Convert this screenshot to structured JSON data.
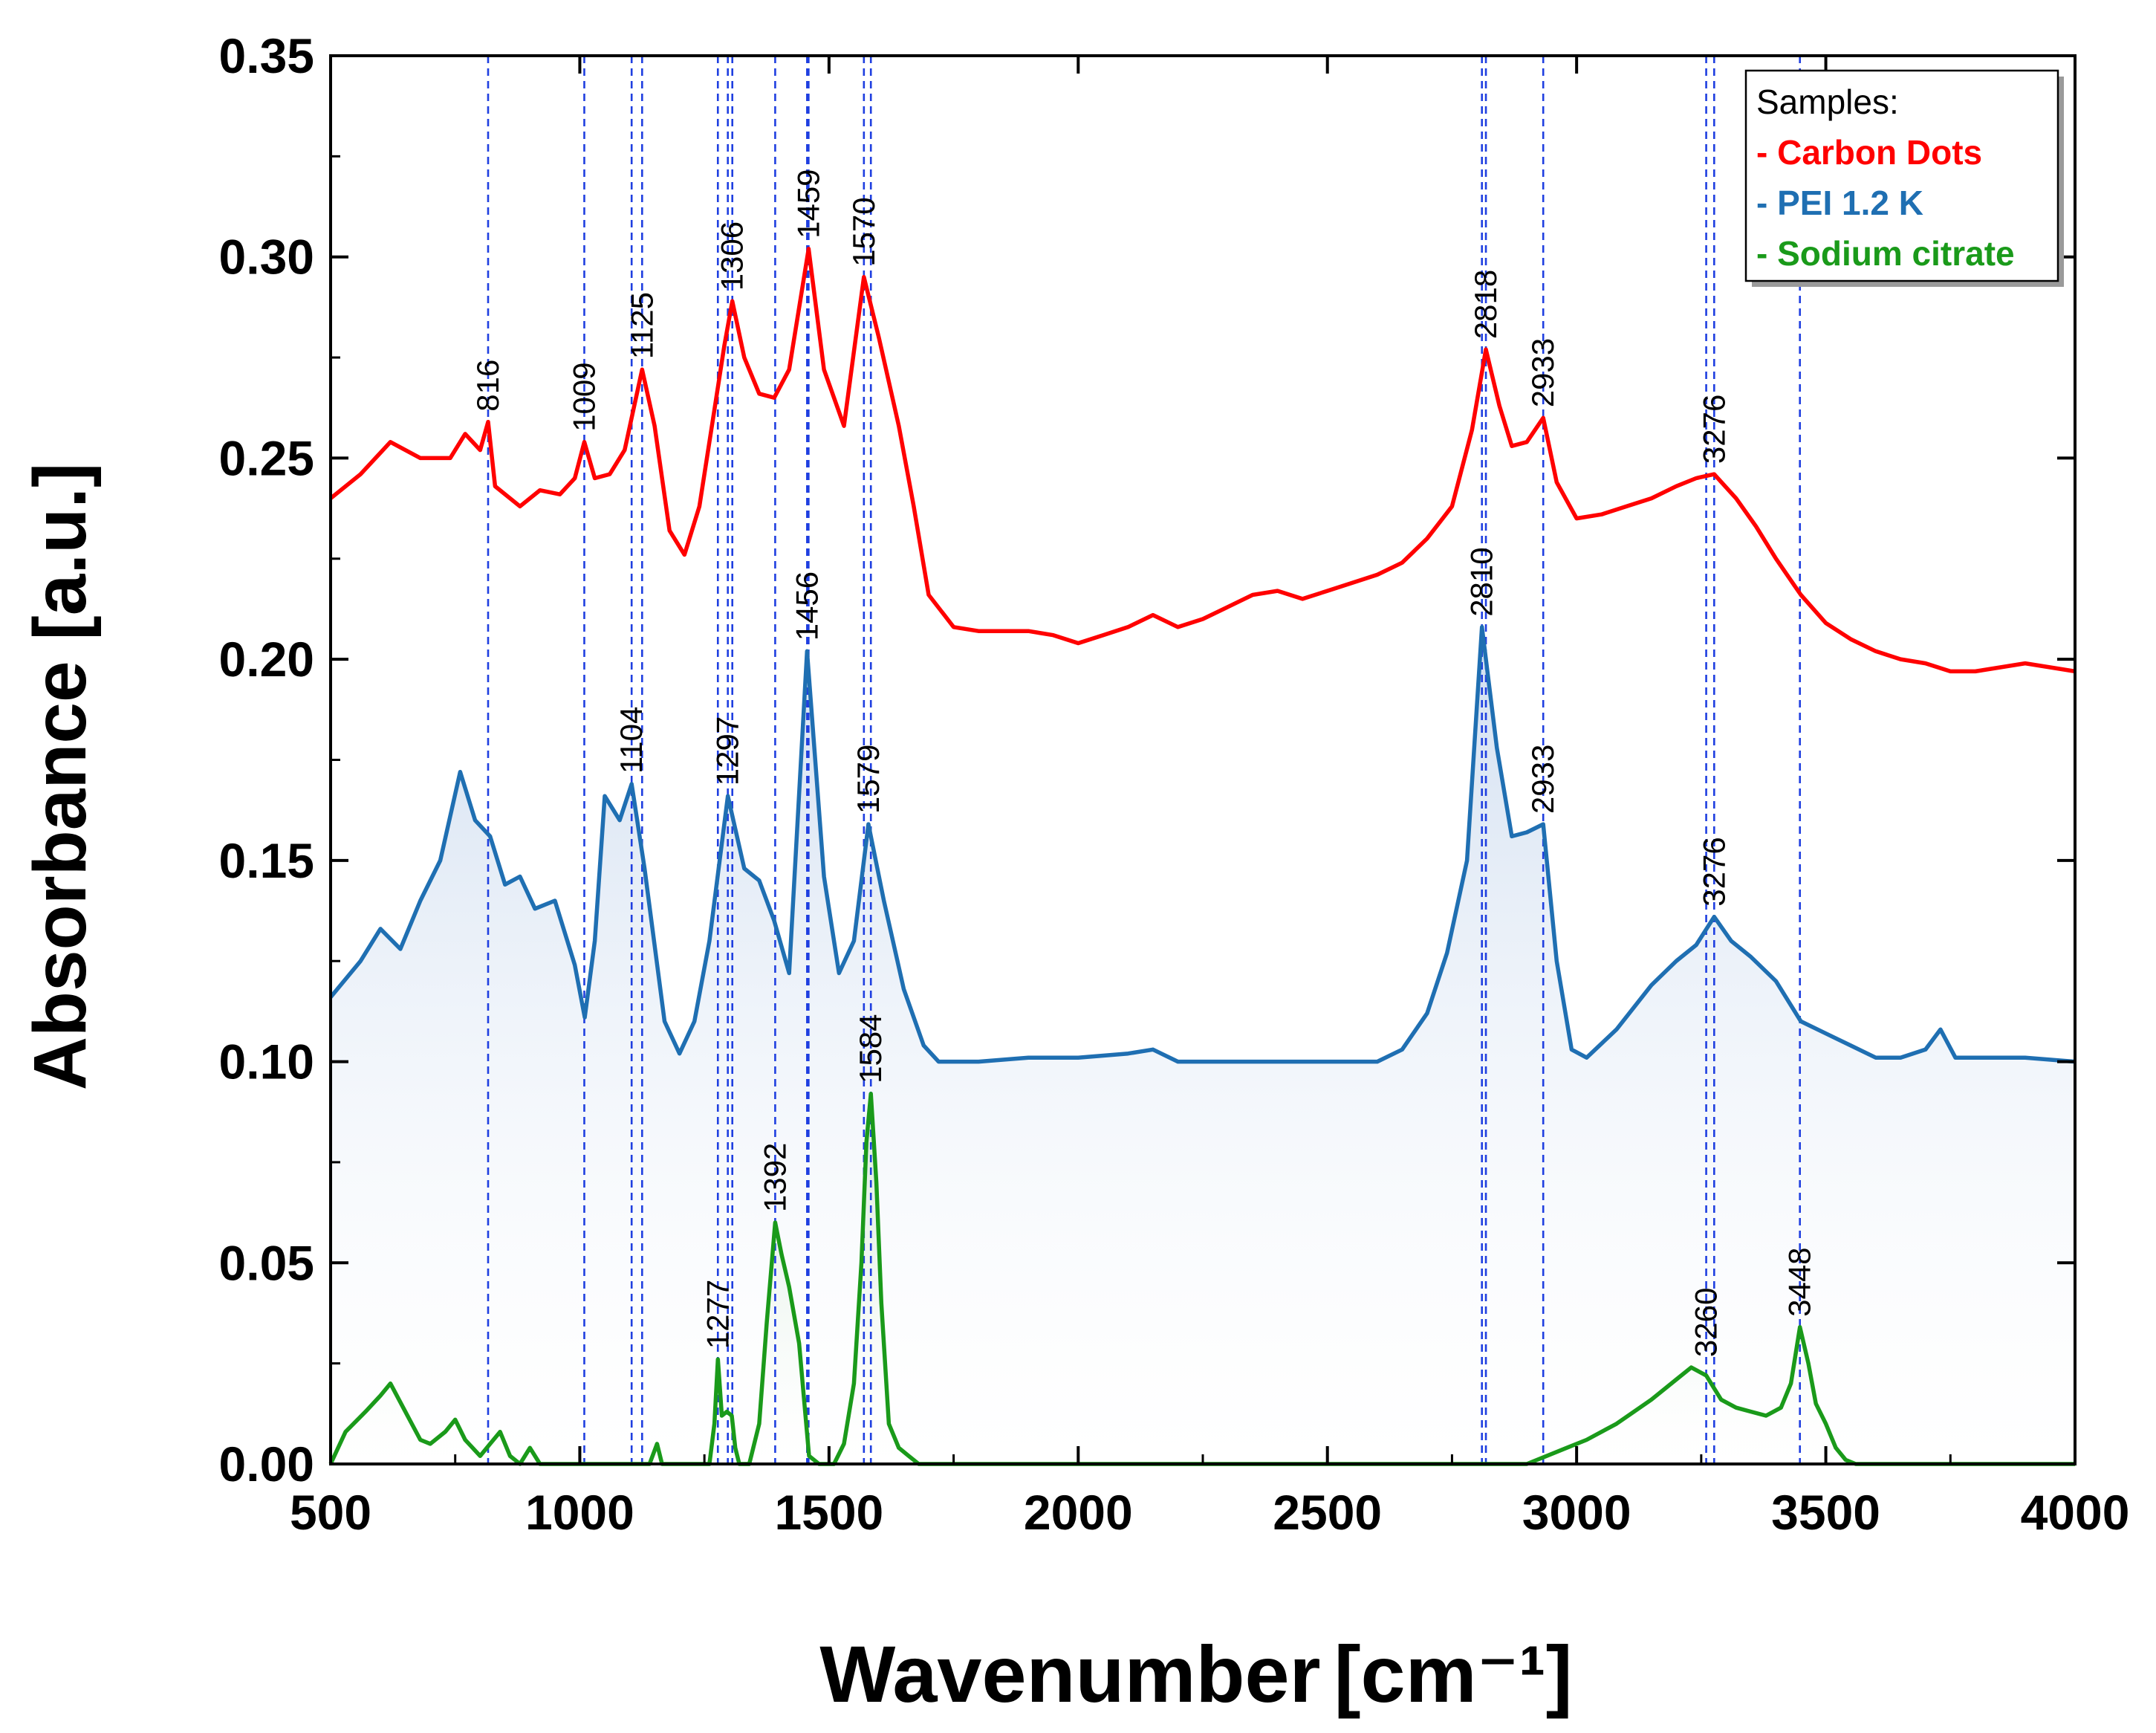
{
  "chart_data": {
    "type": "line",
    "title": "",
    "xlabel": "Wavenumber",
    "xlabel_unit": "[cm⁻¹]",
    "ylabel": "Absorbance [a.u.]",
    "xlim": [
      500,
      4000
    ],
    "ylim": [
      0,
      0.35
    ],
    "x_ticks": [
      500,
      1000,
      1500,
      2000,
      2500,
      3000,
      3500,
      4000
    ],
    "x_tick_labels": [
      "500",
      "1000",
      "1500",
      "2000",
      "2500",
      "3000",
      "3500",
      "4000"
    ],
    "y_ticks": [
      0,
      0.05,
      0.1,
      0.15,
      0.2,
      0.25,
      0.3,
      0.35
    ],
    "y_tick_labels": [
      "0.00",
      "0.05",
      "0.10",
      "0.15",
      "0.20",
      "0.25",
      "0.30",
      "0.35"
    ],
    "grid": false,
    "legend": {
      "title": "Samples:",
      "position": "top-right",
      "entries": [
        {
          "label": "- Carbon Dots",
          "color": "#ff0000"
        },
        {
          "label": "- PEI 1.2 K",
          "color": "#1f6fb2"
        },
        {
          "label": "- Sodium citrate",
          "color": "#1a9a1a"
        }
      ]
    },
    "reference_lines": [
      816,
      1009,
      1104,
      1125,
      1277,
      1297,
      1306,
      1392,
      1456,
      1459,
      1570,
      1584,
      2810,
      2818,
      2933,
      3260,
      3276,
      3448
    ],
    "reference_line_color": "#1f3fe0",
    "series": [
      {
        "name": "Carbon Dots",
        "color": "#ff0000",
        "x": [
          500,
          560,
          620,
          680,
          740,
          770,
          800,
          816,
          830,
          880,
          920,
          960,
          990,
          1009,
          1030,
          1060,
          1090,
          1125,
          1150,
          1180,
          1210,
          1240,
          1270,
          1290,
          1306,
          1330,
          1360,
          1390,
          1420,
          1459,
          1490,
          1530,
          1570,
          1600,
          1640,
          1670,
          1700,
          1750,
          1800,
          1850,
          1900,
          1950,
          2000,
          2050,
          2100,
          2150,
          2200,
          2250,
          2300,
          2350,
          2400,
          2450,
          2500,
          2550,
          2600,
          2650,
          2700,
          2750,
          2790,
          2818,
          2845,
          2870,
          2900,
          2933,
          2960,
          3000,
          3050,
          3100,
          3150,
          3200,
          3240,
          3276,
          3320,
          3360,
          3400,
          3450,
          3500,
          3550,
          3600,
          3650,
          3700,
          3750,
          3800,
          3850,
          3900,
          3950,
          4000
        ],
        "y": [
          0.24,
          0.246,
          0.254,
          0.25,
          0.25,
          0.256,
          0.252,
          0.259,
          0.243,
          0.238,
          0.242,
          0.241,
          0.245,
          0.254,
          0.245,
          0.246,
          0.252,
          0.272,
          0.258,
          0.232,
          0.226,
          0.238,
          0.262,
          0.278,
          0.289,
          0.275,
          0.266,
          0.265,
          0.272,
          0.302,
          0.272,
          0.258,
          0.295,
          0.28,
          0.258,
          0.238,
          0.216,
          0.208,
          0.207,
          0.207,
          0.207,
          0.206,
          0.204,
          0.206,
          0.208,
          0.211,
          0.208,
          0.21,
          0.213,
          0.216,
          0.217,
          0.215,
          0.217,
          0.219,
          0.221,
          0.224,
          0.23,
          0.238,
          0.257,
          0.277,
          0.263,
          0.253,
          0.254,
          0.26,
          0.244,
          0.235,
          0.236,
          0.238,
          0.24,
          0.243,
          0.245,
          0.246,
          0.24,
          0.233,
          0.225,
          0.216,
          0.209,
          0.205,
          0.202,
          0.2,
          0.199,
          0.197,
          0.197,
          0.198,
          0.199,
          0.198,
          0.197
        ]
      },
      {
        "name": "PEI 1.2 K",
        "color": "#1f6fb2",
        "x": [
          500,
          560,
          600,
          640,
          680,
          720,
          760,
          790,
          820,
          850,
          880,
          910,
          950,
          990,
          1010,
          1030,
          1050,
          1080,
          1104,
          1130,
          1170,
          1200,
          1230,
          1260,
          1297,
          1330,
          1360,
          1390,
          1420,
          1456,
          1490,
          1520,
          1550,
          1579,
          1610,
          1650,
          1690,
          1720,
          1800,
          1900,
          2000,
          2100,
          2150,
          2200,
          2300,
          2400,
          2500,
          2600,
          2650,
          2700,
          2740,
          2780,
          2810,
          2840,
          2870,
          2900,
          2933,
          2960,
          2990,
          3020,
          3080,
          3150,
          3200,
          3240,
          3276,
          3310,
          3350,
          3400,
          3450,
          3500,
          3550,
          3600,
          3650,
          3700,
          3730,
          3760,
          3800,
          3900,
          4000
        ],
        "y": [
          0.116,
          0.125,
          0.133,
          0.128,
          0.14,
          0.15,
          0.172,
          0.16,
          0.156,
          0.144,
          0.146,
          0.138,
          0.14,
          0.124,
          0.111,
          0.13,
          0.166,
          0.16,
          0.169,
          0.148,
          0.11,
          0.102,
          0.11,
          0.13,
          0.166,
          0.148,
          0.145,
          0.135,
          0.122,
          0.202,
          0.146,
          0.122,
          0.13,
          0.159,
          0.14,
          0.118,
          0.104,
          0.1,
          0.1,
          0.101,
          0.101,
          0.102,
          0.103,
          0.1,
          0.1,
          0.1,
          0.1,
          0.1,
          0.103,
          0.112,
          0.127,
          0.15,
          0.208,
          0.178,
          0.156,
          0.157,
          0.159,
          0.125,
          0.103,
          0.101,
          0.108,
          0.119,
          0.125,
          0.129,
          0.136,
          0.13,
          0.126,
          0.12,
          0.11,
          0.107,
          0.104,
          0.101,
          0.101,
          0.103,
          0.108,
          0.101,
          0.101,
          0.101,
          0.1
        ]
      },
      {
        "name": "Sodium citrate",
        "color": "#1a9a1a",
        "x": [
          500,
          530,
          570,
          600,
          620,
          650,
          680,
          700,
          730,
          750,
          770,
          800,
          820,
          840,
          860,
          880,
          900,
          920,
          960,
          1100,
          1140,
          1155,
          1165,
          1180,
          1240,
          1260,
          1270,
          1277,
          1285,
          1295,
          1305,
          1312,
          1320,
          1340,
          1360,
          1375,
          1392,
          1405,
          1420,
          1440,
          1460,
          1480,
          1510,
          1530,
          1550,
          1565,
          1575,
          1584,
          1595,
          1605,
          1620,
          1640,
          1660,
          1680,
          1700,
          1800,
          2000,
          2200,
          2500,
          2900,
          2940,
          2980,
          3020,
          3080,
          3150,
          3200,
          3230,
          3260,
          3290,
          3320,
          3350,
          3380,
          3410,
          3430,
          3448,
          3465,
          3480,
          3500,
          3520,
          3540,
          3560,
          4000
        ],
        "y": [
          0.0,
          0.008,
          0.013,
          0.017,
          0.02,
          0.013,
          0.006,
          0.005,
          0.008,
          0.011,
          0.006,
          0.002,
          0.005,
          0.008,
          0.002,
          0.0,
          0.004,
          0.0,
          0.0,
          0.0,
          0.0,
          0.005,
          0.0,
          0.0,
          0.0,
          0.0,
          0.01,
          0.026,
          0.012,
          0.013,
          0.012,
          0.004,
          0.0,
          0.0,
          0.01,
          0.035,
          0.06,
          0.052,
          0.044,
          0.03,
          0.002,
          0.0,
          0.0,
          0.005,
          0.02,
          0.05,
          0.08,
          0.092,
          0.07,
          0.04,
          0.01,
          0.004,
          0.002,
          0.0,
          0.0,
          0.0,
          0.0,
          0.0,
          0.0,
          0.0,
          0.002,
          0.004,
          0.006,
          0.01,
          0.016,
          0.021,
          0.024,
          0.022,
          0.016,
          0.014,
          0.013,
          0.012,
          0.014,
          0.02,
          0.034,
          0.025,
          0.015,
          0.01,
          0.004,
          0.001,
          0.0,
          0.0
        ]
      }
    ],
    "annotations": [
      {
        "text": "816",
        "x": 816,
        "y": 0.259
      },
      {
        "text": "1009",
        "x": 1009,
        "y": 0.254
      },
      {
        "text": "1125",
        "x": 1125,
        "y": 0.272
      },
      {
        "text": "1306",
        "x": 1306,
        "y": 0.289
      },
      {
        "text": "1459",
        "x": 1459,
        "y": 0.302
      },
      {
        "text": "1570",
        "x": 1570,
        "y": 0.295
      },
      {
        "text": "2818",
        "x": 2818,
        "y": 0.277
      },
      {
        "text": "2933",
        "x": 2933,
        "y": 0.26
      },
      {
        "text": "3276",
        "x": 3276,
        "y": 0.246
      },
      {
        "text": "1104",
        "x": 1104,
        "y": 0.169
      },
      {
        "text": "1297",
        "x": 1297,
        "y": 0.166
      },
      {
        "text": "1456",
        "x": 1456,
        "y": 0.202
      },
      {
        "text": "1579",
        "x": 1579,
        "y": 0.159
      },
      {
        "text": "2810",
        "x": 2810,
        "y": 0.208
      },
      {
        "text": "2933",
        "x": 2933,
        "y": 0.159
      },
      {
        "text": "3276",
        "x": 3276,
        "y": 0.136
      },
      {
        "text": "1277",
        "x": 1277,
        "y": 0.026
      },
      {
        "text": "1392",
        "x": 1392,
        "y": 0.06
      },
      {
        "text": "1584",
        "x": 1584,
        "y": 0.092
      },
      {
        "text": "3260",
        "x": 3260,
        "y": 0.024
      },
      {
        "text": "3448",
        "x": 3448,
        "y": 0.034
      }
    ]
  }
}
